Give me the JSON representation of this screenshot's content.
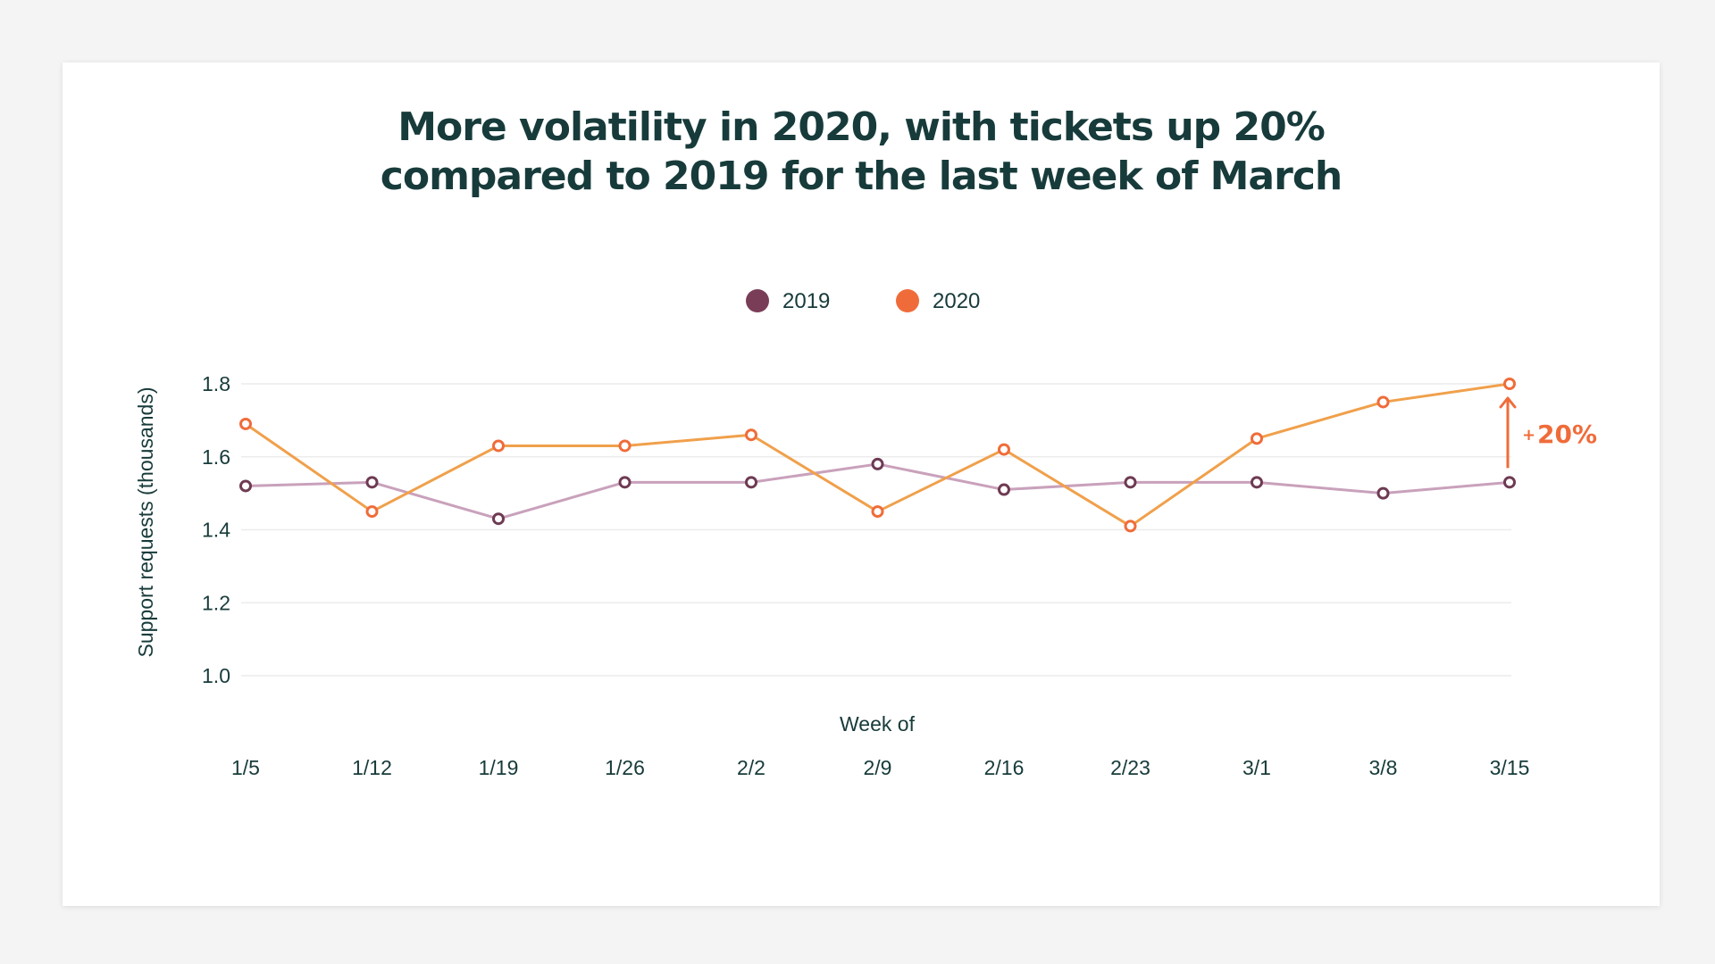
{
  "chart_data": {
    "type": "line",
    "title_lines": [
      "More volatility in 2020, with tickets up 20%",
      "compared to 2019 for the last week of March"
    ],
    "xlabel": "Week of",
    "ylabel": "Support requests (thousands)",
    "categories": [
      "1/5",
      "1/12",
      "1/19",
      "1/26",
      "2/2",
      "2/9",
      "2/16",
      "2/23",
      "3/1",
      "3/8",
      "3/15"
    ],
    "ylim": [
      1.0,
      1.8
    ],
    "yticks": [
      "1.0",
      "1.2",
      "1.4",
      "1.6",
      "1.8"
    ],
    "grid": true,
    "legend_position": "top-center",
    "series": [
      {
        "name": "2019",
        "legend_color": "#7a3d57",
        "line_color": "#c9a1bb",
        "marker_color": "#6e3a52",
        "values": [
          1.52,
          1.53,
          1.43,
          1.53,
          1.53,
          1.58,
          1.51,
          1.53,
          1.53,
          1.5,
          1.53
        ]
      },
      {
        "name": "2020",
        "legend_color": "#ef6c3a",
        "line_color": "#f0a04b",
        "marker_color": "#ef6c3a",
        "values": [
          1.69,
          1.45,
          1.63,
          1.63,
          1.66,
          1.45,
          1.62,
          1.41,
          1.65,
          1.75,
          1.8
        ]
      }
    ],
    "annotation": {
      "plus": "+",
      "text": "20%",
      "color": "#ef6c3a"
    }
  }
}
